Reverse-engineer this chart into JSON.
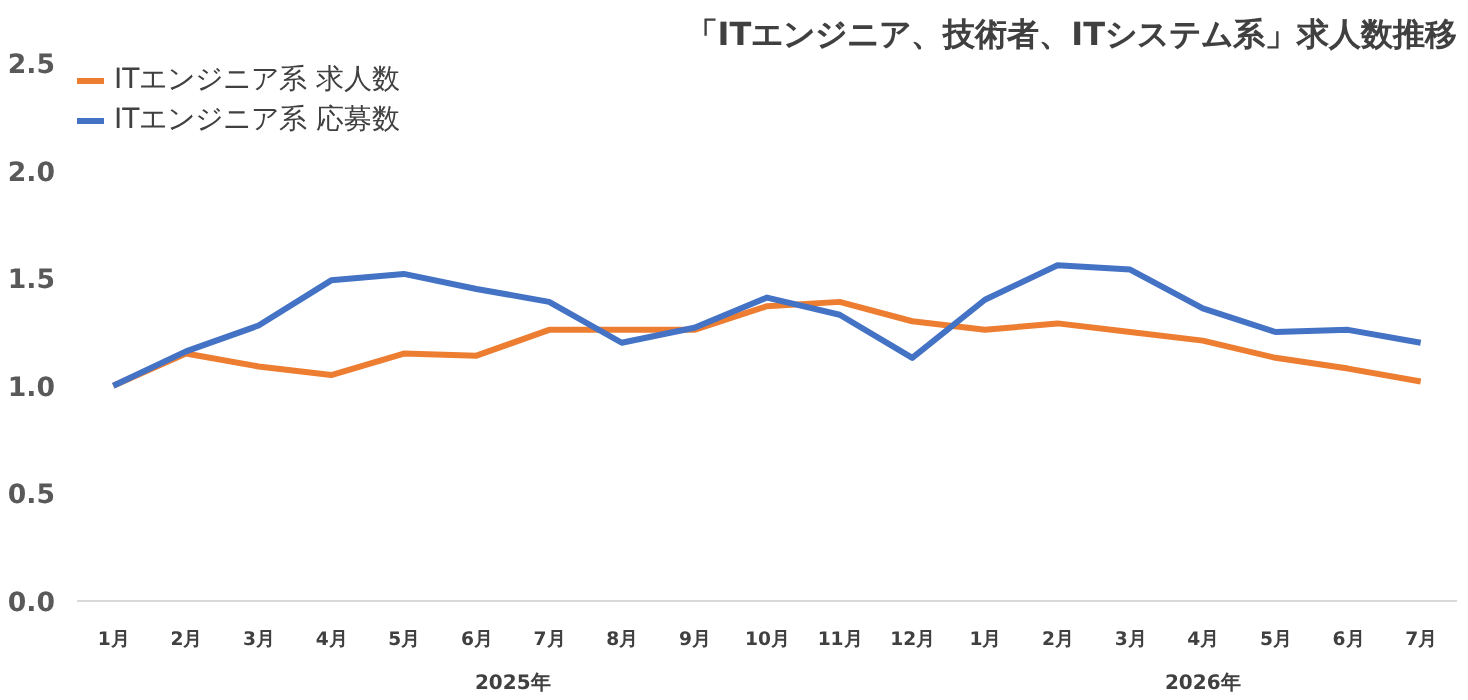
{
  "chart_data": {
    "type": "line",
    "title": "「ITエンジニア、技術者、ITシステム系」求人数推移",
    "categories": [
      "1月",
      "2月",
      "3月",
      "4月",
      "5月",
      "6月",
      "7月",
      "8月",
      "9月",
      "10月",
      "11月",
      "12月",
      "1月",
      "2月",
      "3月",
      "4月",
      "5月",
      "6月",
      "7月"
    ],
    "series": [
      {
        "name": "ITエンジニア系 求人数",
        "color": "#ed7d31",
        "values": [
          1.0,
          1.15,
          1.09,
          1.05,
          1.15,
          1.14,
          1.26,
          1.26,
          1.26,
          1.37,
          1.39,
          1.3,
          1.26,
          1.29,
          1.25,
          1.21,
          1.13,
          1.08,
          1.02
        ]
      },
      {
        "name": "ITエンジニア系 応募数",
        "color": "#4472c4",
        "values": [
          1.0,
          1.16,
          1.28,
          1.49,
          1.52,
          1.45,
          1.39,
          1.2,
          1.27,
          1.41,
          1.33,
          1.13,
          1.4,
          1.56,
          1.54,
          1.36,
          1.25,
          1.26,
          1.2
        ]
      }
    ],
    "annotations": [
      "2025年",
      "2026年"
    ],
    "ylim": [
      0,
      2.5
    ],
    "yticks": [
      {
        "value": 0,
        "label": "0.0"
      },
      {
        "value": 0.5,
        "label": "0.5"
      },
      {
        "value": 1,
        "label": "1.0"
      },
      {
        "value": 1.5,
        "label": "1.5"
      },
      {
        "value": 2,
        "label": "2.0"
      },
      {
        "value": 2.5,
        "label": "2.5"
      }
    ],
    "grid": false,
    "legend": "top left",
    "marker": "none",
    "line_style": "solid"
  }
}
